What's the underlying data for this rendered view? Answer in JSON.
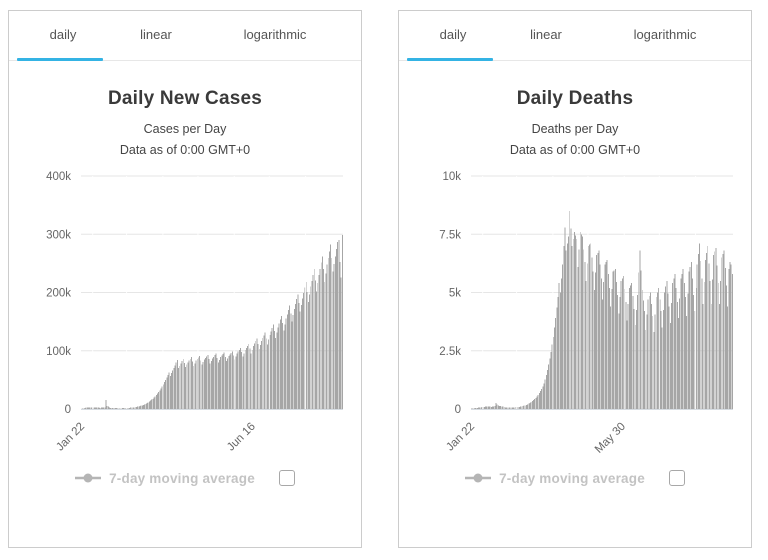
{
  "ui": {
    "tab_labels": [
      "daily",
      "linear",
      "logarithmic"
    ],
    "active_tab": "daily",
    "legend_label": "7-day moving average",
    "checkbox_checked": false,
    "colors": {
      "accent": "#34b3e4",
      "bar": "#a6a6a6",
      "grid": "#e6e6e6",
      "axis_text": "#666666",
      "baseline": "#d6dce2",
      "legend_text": "#c3c3c3",
      "legend_marker": "#b5b5b5",
      "checkbox_border": "#a8a8a8",
      "card_border": "#cccccc",
      "title_text": "#3a3a3a"
    }
  },
  "chart_data": [
    {
      "type": "bar",
      "title": "Daily New Cases",
      "subtitle": [
        "Cases per Day",
        "Data as of 0:00 GMT+0"
      ],
      "xlabel": "",
      "ylabel": "",
      "ylim": [
        0,
        400000
      ],
      "grid": "horizontal",
      "legend": [
        "7-day moving average"
      ],
      "legend_position": "bottom",
      "n_days": 224,
      "x_start": "Jan 22",
      "x_ticks": [
        {
          "label": "Jan 22",
          "day": 0
        },
        {
          "label": "Jun 16",
          "day": 146
        }
      ],
      "y_ticks": [
        {
          "label": "0",
          "value": 0
        },
        {
          "label": "100k",
          "value": 100000
        },
        {
          "label": "200k",
          "value": 200000
        },
        {
          "label": "300k",
          "value": 300000
        },
        {
          "label": "400k",
          "value": 400000
        }
      ],
      "month_boundary_days": [
        10,
        39,
        70,
        100,
        131,
        161,
        192
      ],
      "series": [
        {
          "name": "daily cases",
          "sampled_points": [
            [
              0,
              300
            ],
            [
              4,
              2200
            ],
            [
              8,
              3000
            ],
            [
              12,
              2600
            ],
            [
              16,
              2100
            ],
            [
              20,
              2600
            ],
            [
              21,
              15100
            ],
            [
              22,
              5000
            ],
            [
              25,
              1900
            ],
            [
              29,
              1400
            ],
            [
              33,
              1200
            ],
            [
              37,
              1500
            ],
            [
              41,
              2000
            ],
            [
              45,
              2900
            ],
            [
              49,
              4400
            ],
            [
              52,
              6200
            ],
            [
              55,
              8800
            ],
            [
              58,
              12600
            ],
            [
              61,
              17600
            ],
            [
              64,
              24000
            ],
            [
              67,
              32000
            ],
            [
              70,
              42000
            ],
            [
              72,
              50000
            ],
            [
              74,
              58000
            ],
            [
              75,
              63000
            ],
            [
              76,
              57000
            ],
            [
              78,
              66000
            ],
            [
              80,
              75000
            ],
            [
              82,
              84000
            ],
            [
              83,
              70000
            ],
            [
              85,
              78000
            ],
            [
              87,
              86000
            ],
            [
              89,
              72000
            ],
            [
              91,
              80000
            ],
            [
              94,
              89000
            ],
            [
              96,
              74000
            ],
            [
              98,
              83000
            ],
            [
              101,
              91000
            ],
            [
              103,
              76000
            ],
            [
              105,
              85000
            ],
            [
              108,
              93000
            ],
            [
              110,
              78000
            ],
            [
              112,
              87000
            ],
            [
              115,
              95000
            ],
            [
              117,
              80000
            ],
            [
              119,
              89000
            ],
            [
              122,
              97000
            ],
            [
              124,
              82000
            ],
            [
              126,
              91000
            ],
            [
              129,
              99000
            ],
            [
              131,
              85000
            ],
            [
              133,
              95000
            ],
            [
              136,
              105000
            ],
            [
              138,
              90000
            ],
            [
              140,
              101000
            ],
            [
              143,
              112000
            ],
            [
              145,
              95000
            ],
            [
              147,
              108000
            ],
            [
              150,
              121000
            ],
            [
              152,
              103000
            ],
            [
              154,
              117000
            ],
            [
              157,
              131000
            ],
            [
              159,
              111000
            ],
            [
              161,
              127000
            ],
            [
              164,
              145000
            ],
            [
              166,
              122000
            ],
            [
              168,
              140000
            ],
            [
              171,
              160000
            ],
            [
              173,
              135000
            ],
            [
              175,
              155000
            ],
            [
              178,
              178000
            ],
            [
              180,
              150000
            ],
            [
              182,
              172000
            ],
            [
              185,
              197000
            ],
            [
              187,
              167000
            ],
            [
              189,
              190000
            ],
            [
              192,
              218000
            ],
            [
              194,
              184000
            ],
            [
              196,
              210000
            ],
            [
              199,
              240000
            ],
            [
              201,
              202000
            ],
            [
              203,
              230000
            ],
            [
              206,
              262000
            ],
            [
              208,
              218000
            ],
            [
              210,
              248000
            ],
            [
              213,
              282000
            ],
            [
              215,
              236000
            ],
            [
              217,
              262000
            ],
            [
              219,
              287000
            ],
            [
              220,
              290000
            ],
            [
              221,
              252000
            ],
            [
              222,
              226000
            ],
            [
              223,
              299000
            ]
          ]
        }
      ]
    },
    {
      "type": "bar",
      "title": "Daily Deaths",
      "subtitle": [
        "Deaths per Day",
        "Data as of 0:00 GMT+0"
      ],
      "xlabel": "",
      "ylabel": "",
      "ylim": [
        0,
        10000
      ],
      "grid": "horizontal",
      "legend": [
        "7-day moving average"
      ],
      "legend_position": "bottom",
      "n_days": 224,
      "x_start": "Jan 22",
      "x_ticks": [
        {
          "label": "Jan 22",
          "day": 0
        },
        {
          "label": "May 30",
          "day": 129
        }
      ],
      "y_ticks": [
        {
          "label": "0",
          "value": 0
        },
        {
          "label": "2.5k",
          "value": 2500
        },
        {
          "label": "5k",
          "value": 5000
        },
        {
          "label": "7.5k",
          "value": 7500
        },
        {
          "label": "10k",
          "value": 10000
        }
      ],
      "month_boundary_days": [
        10,
        39,
        70,
        100,
        131,
        161,
        192
      ],
      "series": [
        {
          "name": "daily deaths",
          "sampled_points": [
            [
              0,
              20
            ],
            [
              5,
              45
            ],
            [
              10,
              90
            ],
            [
              14,
              110
            ],
            [
              17,
              95
            ],
            [
              20,
              120
            ],
            [
              21,
              254
            ],
            [
              23,
              150
            ],
            [
              26,
              115
            ],
            [
              29,
              75
            ],
            [
              33,
              60
            ],
            [
              37,
              75
            ],
            [
              41,
              95
            ],
            [
              45,
              140
            ],
            [
              48,
              200
            ],
            [
              51,
              290
            ],
            [
              54,
              420
            ],
            [
              57,
              600
            ],
            [
              60,
              850
            ],
            [
              62,
              1100
            ],
            [
              64,
              1450
            ],
            [
              66,
              1900
            ],
            [
              68,
              2450
            ],
            [
              70,
              3100
            ],
            [
              72,
              3900
            ],
            [
              74,
              4800
            ],
            [
              75,
              5400
            ],
            [
              76,
              5000
            ],
            [
              78,
              6200
            ],
            [
              80,
              7800
            ],
            [
              81,
              6800
            ],
            [
              83,
              7400
            ],
            [
              84,
              8500
            ],
            [
              86,
              7000
            ],
            [
              88,
              7600
            ],
            [
              90,
              7300
            ],
            [
              91,
              6100
            ],
            [
              93,
              7600
            ],
            [
              95,
              7400
            ],
            [
              97,
              6300
            ],
            [
              98,
              5500
            ],
            [
              100,
              7000
            ],
            [
              102,
              7100
            ],
            [
              104,
              5900
            ],
            [
              105,
              5100
            ],
            [
              107,
              6600
            ],
            [
              109,
              6800
            ],
            [
              111,
              5600
            ],
            [
              112,
              4700
            ],
            [
              114,
              6200
            ],
            [
              116,
              6400
            ],
            [
              118,
              5200
            ],
            [
              119,
              4400
            ],
            [
              121,
              5900
            ],
            [
              123,
              6000
            ],
            [
              125,
              4900
            ],
            [
              126,
              4100
            ],
            [
              128,
              5500
            ],
            [
              130,
              5700
            ],
            [
              132,
              4600
            ],
            [
              133,
              3800
            ],
            [
              135,
              5200
            ],
            [
              137,
              5400
            ],
            [
              139,
              4300
            ],
            [
              140,
              3600
            ],
            [
              142,
              4900
            ],
            [
              144,
              6800
            ],
            [
              146,
              5100
            ],
            [
              148,
              4200
            ],
            [
              149,
              3400
            ],
            [
              151,
              4700
            ],
            [
              153,
              5000
            ],
            [
              155,
              4000
            ],
            [
              156,
              3300
            ],
            [
              158,
              4800
            ],
            [
              160,
              5200
            ],
            [
              162,
              4200
            ],
            [
              163,
              3500
            ],
            [
              165,
              5000
            ],
            [
              167,
              5500
            ],
            [
              169,
              4400
            ],
            [
              170,
              3700
            ],
            [
              172,
              5400
            ],
            [
              174,
              5800
            ],
            [
              176,
              4600
            ],
            [
              177,
              3900
            ],
            [
              179,
              5600
            ],
            [
              181,
              6000
            ],
            [
              183,
              4800
            ],
            [
              184,
              4000
            ],
            [
              186,
              5900
            ],
            [
              188,
              6300
            ],
            [
              190,
              4900
            ],
            [
              191,
              4200
            ],
            [
              193,
              6200
            ],
            [
              195,
              7100
            ],
            [
              197,
              5600
            ],
            [
              198,
              4500
            ],
            [
              200,
              6400
            ],
            [
              202,
              7000
            ],
            [
              204,
              5500
            ],
            [
              205,
              4500
            ],
            [
              207,
              6600
            ],
            [
              209,
              6900
            ],
            [
              211,
              5400
            ],
            [
              212,
              4500
            ],
            [
              214,
              6500
            ],
            [
              216,
              6800
            ],
            [
              218,
              5300
            ],
            [
              219,
              4400
            ],
            [
              220,
              6000
            ],
            [
              221,
              6300
            ],
            [
              222,
              6200
            ],
            [
              223,
              5800
            ]
          ]
        }
      ]
    }
  ]
}
